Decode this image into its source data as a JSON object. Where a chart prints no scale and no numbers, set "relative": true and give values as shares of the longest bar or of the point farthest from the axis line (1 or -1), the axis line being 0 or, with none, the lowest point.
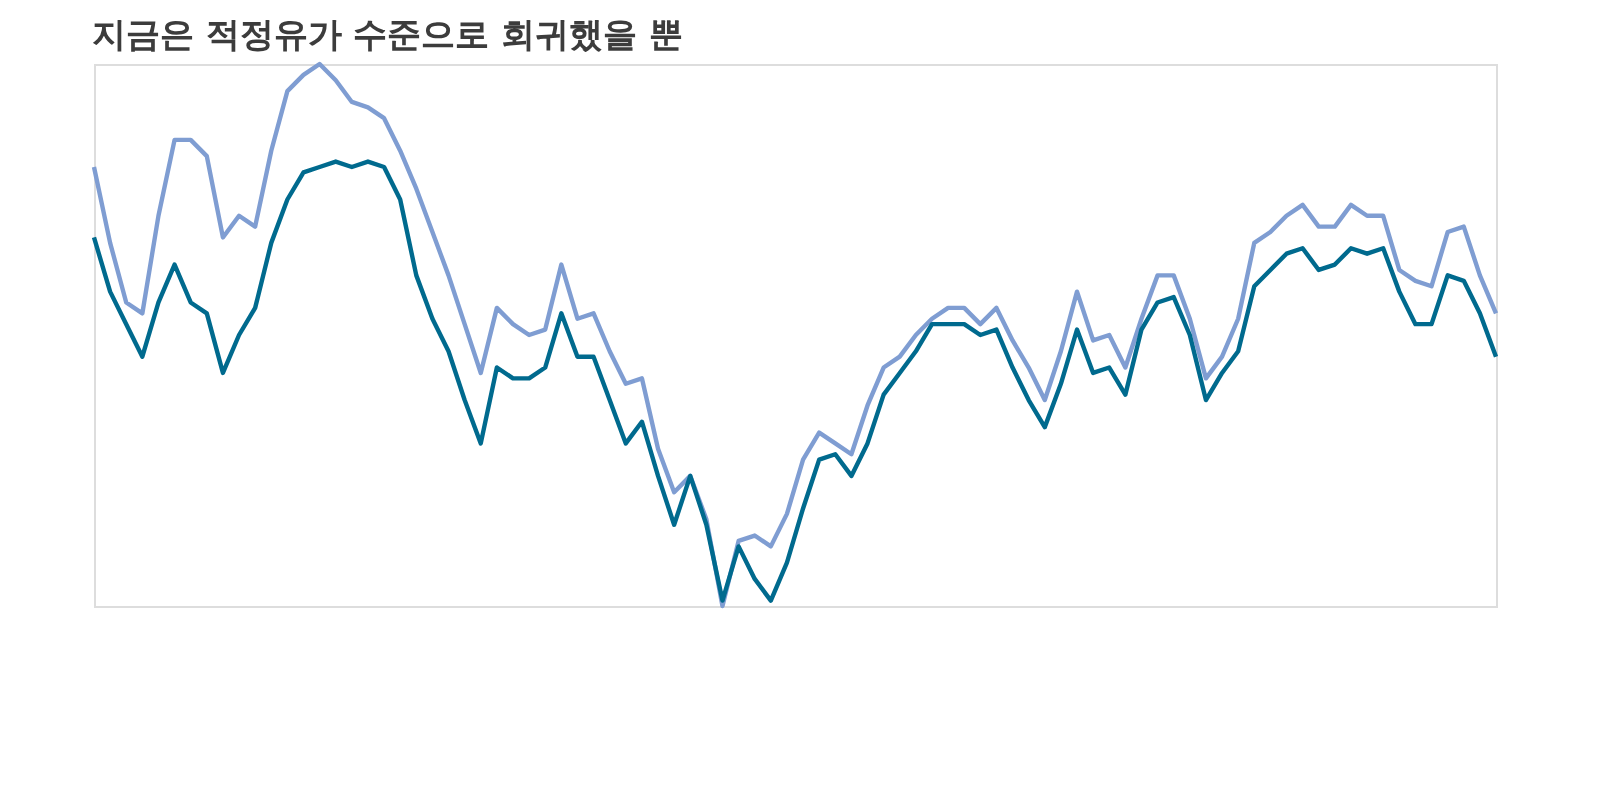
{
  "chart_data": {
    "type": "line",
    "title": "지금은 적정유가 수준으로 회귀했을 뿐",
    "relative": true,
    "legend": false,
    "grid": false,
    "categories": [
      null,
      null,
      null,
      null,
      null,
      null,
      null,
      null,
      null,
      null,
      null,
      null,
      null,
      null,
      null,
      null,
      null,
      null,
      null,
      null,
      null,
      null,
      null,
      null,
      null,
      null,
      null,
      null,
      null,
      null,
      null,
      null,
      null,
      null,
      null,
      null,
      null,
      null,
      null,
      null,
      null,
      null,
      null,
      null,
      null,
      null,
      null,
      null,
      null,
      null,
      null,
      null,
      null,
      null,
      null,
      null,
      null,
      null,
      null,
      null,
      null,
      null,
      null,
      null,
      null,
      null,
      null,
      null,
      null,
      null,
      null,
      null,
      null,
      null,
      null,
      null,
      null,
      null,
      null,
      null,
      null,
      null,
      null,
      null,
      null,
      null,
      null,
      null
    ],
    "series": [
      {
        "color": "#7f9dd2",
        "values": [
          0.81,
          0.67,
          0.56,
          0.54,
          0.72,
          0.86,
          0.86,
          0.83,
          0.68,
          0.72,
          0.7,
          0.84,
          0.95,
          0.98,
          1,
          0.97,
          0.93,
          0.92,
          0.9,
          0.84,
          0.77,
          0.69,
          0.61,
          0.52,
          0.43,
          0.55,
          0.52,
          0.5,
          0.51,
          0.63,
          0.53,
          0.54,
          0.47,
          0.41,
          0.42,
          0.29,
          0.21,
          0.24,
          0.16,
          0,
          0.12,
          0.13,
          0.11,
          0.17,
          0.27,
          0.32,
          0.3,
          0.28,
          0.37,
          0.44,
          0.46,
          0.5,
          0.53,
          0.55,
          0.55,
          0.52,
          0.55,
          0.49,
          0.44,
          0.38,
          0.47,
          0.58,
          0.49,
          0.5,
          0.44,
          0.53,
          0.61,
          0.61,
          0.53,
          0.42,
          0.46,
          0.53,
          0.67,
          0.69,
          0.72,
          0.74,
          0.7,
          0.7,
          0.74,
          0.72,
          0.72,
          0.62,
          0.6,
          0.59,
          0.69,
          0.7,
          0.61,
          0.54
        ]
      },
      {
        "color": "#006a8e",
        "values": [
          0.68,
          0.58,
          0.52,
          0.46,
          0.56,
          0.63,
          0.56,
          0.54,
          0.43,
          0.5,
          0.55,
          0.67,
          0.75,
          0.8,
          0.81,
          0.82,
          0.81,
          0.82,
          0.81,
          0.75,
          0.61,
          0.53,
          0.47,
          0.38,
          0.3,
          0.44,
          0.42,
          0.42,
          0.44,
          0.54,
          0.46,
          0.46,
          0.38,
          0.3,
          0.34,
          0.24,
          0.15,
          0.24,
          0.15,
          0.01,
          0.11,
          0.05,
          0.01,
          0.08,
          0.18,
          0.27,
          0.28,
          0.24,
          0.3,
          0.39,
          0.43,
          0.47,
          0.52,
          0.52,
          0.52,
          0.5,
          0.51,
          0.44,
          0.38,
          0.33,
          0.41,
          0.51,
          0.43,
          0.44,
          0.39,
          0.51,
          0.56,
          0.57,
          0.5,
          0.38,
          0.43,
          0.47,
          0.59,
          0.62,
          0.65,
          0.66,
          0.62,
          0.63,
          0.66,
          0.65,
          0.66,
          0.58,
          0.52,
          0.52,
          0.61,
          0.6,
          0.54,
          0.46
        ]
      }
    ]
  }
}
